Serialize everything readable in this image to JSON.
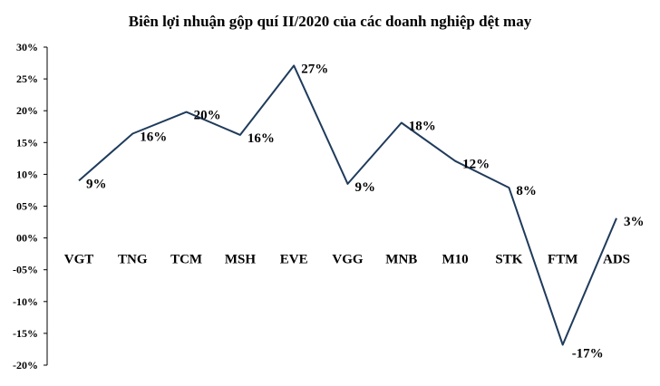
{
  "chart_data": {
    "type": "line",
    "title": "Biên lợi nhuận gộp quí II/2020 của các doanh nghiệp dệt may",
    "xlabel": "",
    "ylabel": "",
    "categories": [
      "VGT",
      "TNG",
      "TCM",
      "MSH",
      "EVE",
      "VGG",
      "MNB",
      "M10",
      "STK",
      "FTM",
      "ADS"
    ],
    "series": [
      {
        "values": [
          9,
          16.4,
          19.8,
          16.2,
          27.1,
          8.5,
          18.1,
          12.1,
          7.9,
          -16.8,
          3.1
        ],
        "labels": [
          "9%",
          "16%",
          "20%",
          "16%",
          "27%",
          "9%",
          "18%",
          "12%",
          "8%",
          "-17%",
          "3%"
        ]
      }
    ],
    "ylim": [
      -20,
      30
    ],
    "yticks": [
      30,
      25,
      20,
      15,
      10,
      5,
      0,
      -5,
      -10,
      -15,
      -20
    ],
    "ytick_labels": [
      "30%",
      "25%",
      "20%",
      "15%",
      "10%",
      "05%",
      "00%",
      "-05%",
      "-10%",
      "-15%",
      "-20%"
    ],
    "line_color": "#1f3b5c",
    "grid": false,
    "legend": "none"
  }
}
